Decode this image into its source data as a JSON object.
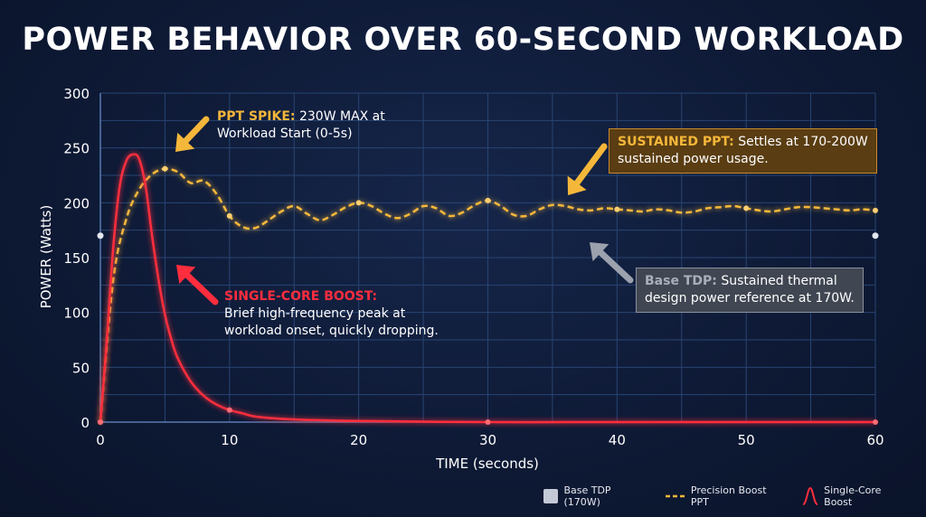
{
  "title": "POWER BEHAVIOR OVER 60-SECOND WORKLOAD",
  "colors": {
    "ppt": "#f5b73a",
    "single": "#ff2d3d",
    "base": "#c3c9d6",
    "grid": "#284573",
    "sustained_box": "#5a3d12",
    "base_box": "#404652"
  },
  "callouts": {
    "ppt_spike": {
      "heading": "PPT SPIKE:",
      "text_1": "230W MAX at",
      "text_2": "Workload Start (0-5s)"
    },
    "sustained": {
      "heading": "SUSTAINED PPT:",
      "text_1": "Settles at 170-200W",
      "text_2": "sustained power usage."
    },
    "single_core": {
      "heading": "SINGLE-CORE BOOST:",
      "text_1": "Brief high-frequency peak at",
      "text_2": "workload onset, quickly dropping."
    },
    "base_tdp": {
      "heading": "Base TDP:",
      "text_1": "Sustained thermal",
      "text_2": "design power reference at 170W."
    }
  },
  "chart_data": {
    "type": "line",
    "xlabel": "TIME (seconds)",
    "ylabel": "POWER (Watts)",
    "xlim": [
      0,
      60
    ],
    "ylim": [
      0,
      300
    ],
    "xticks": [
      0,
      10,
      20,
      30,
      40,
      50,
      60
    ],
    "yticks": [
      0,
      50,
      100,
      150,
      200,
      250,
      300
    ],
    "grid": true,
    "legend_position": "bottom-right",
    "series": [
      {
        "name": "Base TDP (170W)",
        "x": [
          0,
          60
        ],
        "y": [
          170,
          170
        ]
      },
      {
        "name": "Precision Boost PPT",
        "x": [
          0,
          1,
          2,
          3,
          4,
          5,
          6,
          7,
          8,
          9,
          10,
          11,
          12,
          13,
          14,
          15,
          16,
          17,
          18,
          19,
          20,
          21,
          22,
          23,
          24,
          25,
          26,
          27,
          28,
          29,
          30,
          31,
          32,
          33,
          34,
          35,
          36,
          37,
          38,
          39,
          40,
          41,
          42,
          43,
          44,
          45,
          46,
          47,
          48,
          49,
          50,
          51,
          52,
          53,
          54,
          55,
          56,
          57,
          58,
          59,
          60
        ],
        "y": [
          0,
          130,
          185,
          212,
          226,
          231,
          228,
          218,
          220,
          208,
          188,
          178,
          177,
          184,
          192,
          197,
          190,
          184,
          189,
          196,
          200,
          197,
          190,
          186,
          190,
          197,
          195,
          188,
          191,
          198,
          202,
          197,
          189,
          188,
          194,
          198,
          197,
          194,
          193,
          195,
          194,
          193,
          192,
          194,
          193,
          191,
          192,
          195,
          196,
          197,
          195,
          193,
          192,
          194,
          196,
          196,
          195,
          194,
          193,
          194,
          193
        ]
      },
      {
        "name": "Single-Core Boost",
        "x": [
          0,
          0.5,
          1,
          1.5,
          2,
          2.5,
          3,
          3.5,
          4,
          4.5,
          5,
          5.5,
          6,
          7,
          8,
          9,
          10,
          11,
          12,
          14,
          16,
          20,
          30,
          40,
          50,
          60
        ],
        "y": [
          0,
          75,
          160,
          215,
          238,
          244,
          240,
          215,
          170,
          130,
          98,
          75,
          58,
          37,
          24,
          16,
          11,
          8,
          5,
          3,
          2,
          1,
          0,
          0,
          0,
          0
        ]
      }
    ]
  }
}
